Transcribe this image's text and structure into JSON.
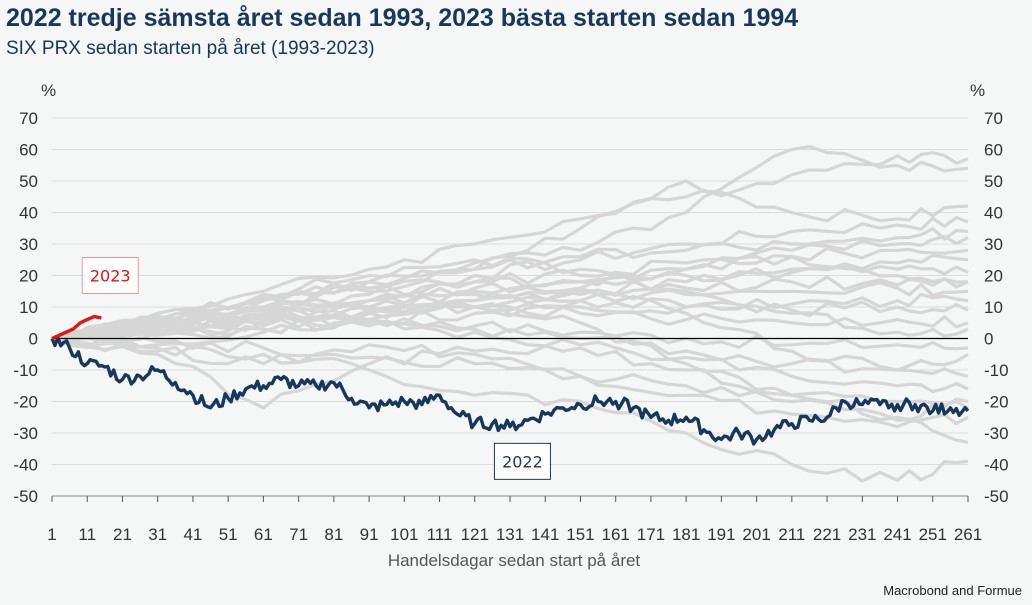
{
  "header": {
    "title": "2022 tredje sämsta året sedan 1993, 2023 bästa starten sedan 1994",
    "subtitle": "SIX PRX sedan starten på året (1993-2023)"
  },
  "footer": {
    "credit": "Macrobond and Formue"
  },
  "colors": {
    "background": "#f5f7f7",
    "history": "#d6d6d6",
    "series_2022": "#17375e",
    "series_2023": "#e3150f",
    "zero_line": "#000000",
    "grid": "#dcdcdc"
  },
  "chart_data": {
    "type": "line",
    "title": "2022 tredje sämsta året sedan 1993, 2023 bästa starten sedan 1994",
    "subtitle": "SIX PRX sedan starten på året (1993-2023)",
    "xlabel": "Handelsdagar sedan start på året",
    "ylabel_left": "%",
    "ylabel_right": "%",
    "xlim": [
      1,
      261
    ],
    "ylim": [
      -50,
      70
    ],
    "x_ticks": [
      "1",
      "11",
      "21",
      "31",
      "41",
      "51",
      "61",
      "71",
      "81",
      "91",
      "101",
      "111",
      "121",
      "131",
      "141",
      "151",
      "161",
      "171",
      "181",
      "191",
      "201",
      "211",
      "221",
      "231",
      "241",
      "251",
      "261"
    ],
    "y_ticks": [
      "70",
      "60",
      "50",
      "40",
      "30",
      "20",
      "10",
      "0",
      "-10",
      "-20",
      "-30",
      "-40",
      "-50"
    ],
    "grid": "horizontal",
    "legend": "none",
    "annotations": [
      {
        "text": "2023",
        "series": "2023",
        "x": 11,
        "y": 20
      },
      {
        "text": "2022",
        "series": "2022",
        "x": 128,
        "y": -39
      }
    ],
    "series": [
      {
        "name": "2022",
        "role": "highlight",
        "x": [
          1,
          6,
          11,
          16,
          21,
          26,
          31,
          36,
          41,
          46,
          51,
          56,
          61,
          66,
          71,
          76,
          81,
          86,
          91,
          96,
          101,
          106,
          111,
          116,
          121,
          126,
          131,
          136,
          141,
          146,
          151,
          156,
          161,
          166,
          171,
          176,
          181,
          186,
          191,
          196,
          201,
          206,
          211,
          216,
          221,
          226,
          231,
          236,
          241,
          246,
          251,
          256,
          261
        ],
        "values": [
          0,
          -3,
          -8,
          -9,
          -13,
          -12,
          -10,
          -14,
          -18,
          -22,
          -19,
          -16,
          -15,
          -13,
          -15,
          -15,
          -14,
          -19,
          -22,
          -21,
          -20,
          -21,
          -18,
          -24,
          -27,
          -27,
          -28,
          -26,
          -24,
          -22,
          -21,
          -20,
          -20,
          -22,
          -25,
          -26,
          -25,
          -29,
          -32,
          -30,
          -32,
          -29,
          -27,
          -26,
          -25,
          -20,
          -21,
          -21,
          -21,
          -21,
          -23,
          -22,
          -23
        ]
      },
      {
        "name": "2023",
        "role": "highlight",
        "x": [
          1,
          3,
          5,
          7,
          9,
          11,
          13,
          15
        ],
        "values": [
          0,
          1,
          2,
          3,
          5,
          6,
          7,
          6.5
        ]
      },
      {
        "role": "history",
        "x": [
          1,
          31,
          61,
          91,
          121,
          151,
          181,
          211,
          241,
          261
        ],
        "values": [
          0,
          8,
          15,
          22,
          30,
          38,
          45,
          52,
          58,
          57
        ]
      },
      {
        "role": "history",
        "x": [
          1,
          31,
          61,
          91,
          121,
          151,
          181,
          211,
          241,
          261
        ],
        "values": [
          0,
          6,
          12,
          18,
          24,
          28,
          40,
          60,
          55,
          54
        ]
      },
      {
        "role": "history",
        "x": [
          1,
          31,
          61,
          91,
          121,
          151,
          181,
          211,
          241,
          261
        ],
        "values": [
          0,
          4,
          10,
          15,
          22,
          35,
          50,
          40,
          38,
          42
        ]
      },
      {
        "role": "history",
        "x": [
          1,
          31,
          61,
          91,
          121,
          151,
          181,
          211,
          241,
          261
        ],
        "values": [
          0,
          5,
          8,
          12,
          20,
          25,
          30,
          34,
          36,
          37
        ]
      },
      {
        "role": "history",
        "x": [
          1,
          31,
          61,
          91,
          121,
          151,
          181,
          211,
          241,
          261
        ],
        "values": [
          0,
          3,
          6,
          10,
          15,
          18,
          22,
          28,
          30,
          32
        ]
      },
      {
        "role": "history",
        "x": [
          1,
          31,
          61,
          91,
          121,
          151,
          181,
          211,
          241,
          261
        ],
        "values": [
          0,
          7,
          12,
          16,
          18,
          20,
          24,
          26,
          28,
          28
        ]
      },
      {
        "role": "history",
        "x": [
          1,
          31,
          61,
          91,
          121,
          151,
          181,
          211,
          241,
          261
        ],
        "values": [
          0,
          2,
          5,
          8,
          12,
          15,
          18,
          22,
          24,
          25
        ]
      },
      {
        "role": "history",
        "x": [
          1,
          31,
          61,
          91,
          121,
          151,
          181,
          211,
          241,
          261
        ],
        "values": [
          0,
          4,
          9,
          12,
          16,
          18,
          20,
          21,
          22,
          21
        ]
      },
      {
        "role": "history",
        "x": [
          1,
          31,
          61,
          91,
          121,
          151,
          181,
          211,
          241,
          261
        ],
        "values": [
          0,
          5,
          8,
          10,
          12,
          14,
          16,
          18,
          17,
          18
        ]
      },
      {
        "role": "history",
        "x": [
          1,
          31,
          61,
          91,
          121,
          151,
          181,
          211,
          241,
          261
        ],
        "values": [
          0,
          3,
          6,
          9,
          10,
          12,
          14,
          15,
          16,
          15
        ]
      },
      {
        "role": "history",
        "x": [
          1,
          31,
          61,
          91,
          121,
          151,
          181,
          211,
          241,
          261
        ],
        "values": [
          0,
          6,
          10,
          12,
          14,
          12,
          10,
          11,
          12,
          12
        ]
      },
      {
        "role": "history",
        "x": [
          1,
          31,
          61,
          91,
          121,
          151,
          181,
          211,
          241,
          261
        ],
        "values": [
          0,
          2,
          4,
          6,
          8,
          10,
          10,
          9,
          10,
          9
        ]
      },
      {
        "role": "history",
        "x": [
          1,
          31,
          61,
          91,
          121,
          151,
          181,
          211,
          241,
          261
        ],
        "values": [
          0,
          4,
          7,
          9,
          10,
          8,
          6,
          5,
          6,
          5
        ]
      },
      {
        "role": "history",
        "x": [
          1,
          31,
          61,
          91,
          121,
          151,
          181,
          211,
          241,
          261
        ],
        "values": [
          0,
          5,
          8,
          6,
          4,
          2,
          0,
          -2,
          -2,
          -3
        ]
      },
      {
        "role": "history",
        "x": [
          1,
          31,
          61,
          91,
          121,
          151,
          181,
          211,
          241,
          261
        ],
        "values": [
          0,
          3,
          5,
          5,
          3,
          0,
          -4,
          -8,
          -10,
          -12
        ]
      },
      {
        "role": "history",
        "x": [
          1,
          31,
          61,
          91,
          121,
          151,
          181,
          211,
          241,
          261
        ],
        "values": [
          0,
          -2,
          2,
          4,
          2,
          -2,
          -6,
          -12,
          -15,
          -16
        ]
      },
      {
        "role": "history",
        "x": [
          1,
          31,
          61,
          91,
          121,
          151,
          181,
          211,
          241,
          261
        ],
        "values": [
          0,
          -4,
          -8,
          -2,
          -5,
          -12,
          -18,
          -24,
          -28,
          -25
        ]
      },
      {
        "role": "history",
        "x": [
          1,
          31,
          61,
          91,
          121,
          151,
          181,
          211,
          241,
          261
        ],
        "values": [
          0,
          -5,
          -22,
          -8,
          -4,
          -3,
          -10,
          -20,
          -26,
          -33
        ]
      },
      {
        "role": "history",
        "x": [
          1,
          31,
          61,
          91,
          121,
          151,
          181,
          211,
          241,
          261
        ],
        "values": [
          0,
          -3,
          -5,
          -10,
          -18,
          -20,
          -30,
          -40,
          -45,
          -39
        ]
      },
      {
        "role": "history",
        "x": [
          1,
          31,
          61,
          91,
          121,
          151,
          181,
          211,
          241,
          261
        ],
        "values": [
          0,
          2,
          3,
          8,
          10,
          5,
          -8,
          -18,
          -25,
          -20
        ]
      },
      {
        "role": "history",
        "x": [
          1,
          31,
          61,
          91,
          121,
          151,
          181,
          211,
          241,
          261
        ],
        "values": [
          0,
          6,
          14,
          20,
          25,
          22,
          15,
          8,
          2,
          3
        ]
      },
      {
        "role": "history",
        "x": [
          1,
          31,
          61,
          91,
          121,
          151,
          181,
          211,
          241,
          261
        ],
        "values": [
          0,
          1,
          3,
          6,
          10,
          16,
          22,
          26,
          20,
          18
        ]
      },
      {
        "role": "history",
        "x": [
          1,
          31,
          61,
          91,
          121,
          151,
          181,
          211,
          241,
          261
        ],
        "values": [
          0,
          7,
          13,
          18,
          22,
          26,
          28,
          30,
          32,
          34
        ]
      },
      {
        "role": "history",
        "x": [
          1,
          31,
          61,
          91,
          121,
          151,
          181,
          211,
          241,
          261
        ],
        "values": [
          0,
          -1,
          -3,
          -6,
          -8,
          -12,
          -15,
          -18,
          -20,
          -22
        ]
      },
      {
        "role": "history",
        "x": [
          1,
          31,
          61,
          91,
          121,
          151,
          181,
          211,
          241,
          261
        ],
        "values": [
          0,
          4,
          8,
          14,
          18,
          16,
          8,
          -4,
          -10,
          -5
        ]
      }
    ]
  }
}
